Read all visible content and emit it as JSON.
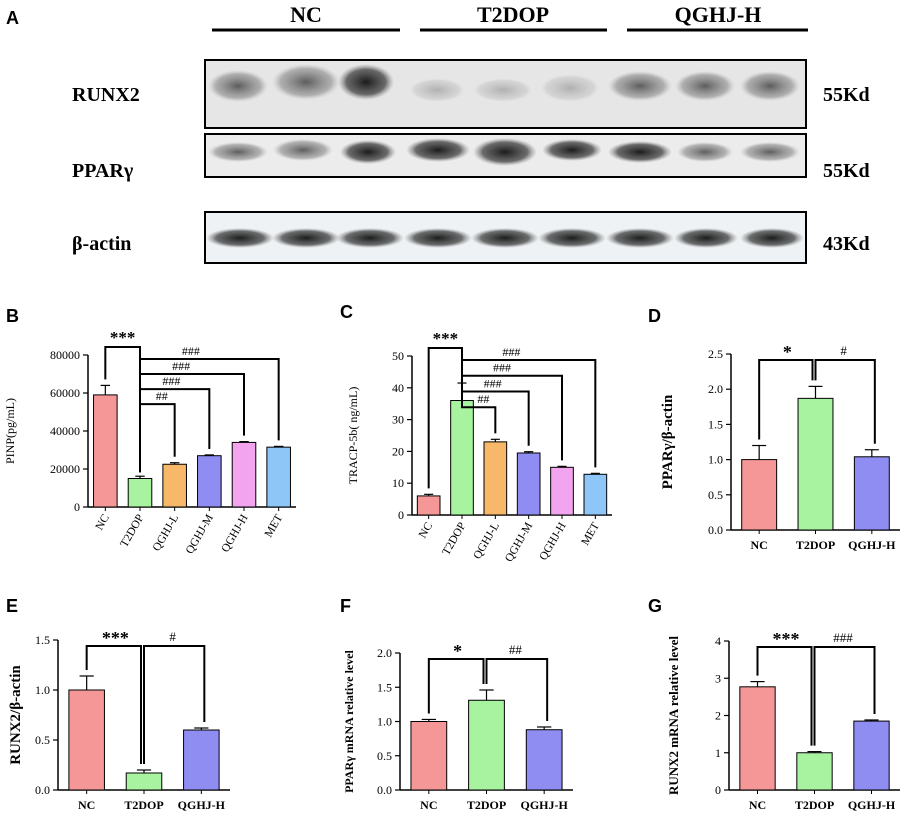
{
  "colors": {
    "nc": "#f59797",
    "t2dop": "#a7f3a0",
    "qghj_l": "#f7b86a",
    "qghj_m": "#8f8cf2",
    "qghj_h": "#f3a4ee",
    "met": "#8ec6f8",
    "qghj_h_3grp": "#8f8cf2"
  },
  "panel_a": {
    "letter": "A",
    "groups": [
      "NC",
      "T2DOP",
      "QGHJ-H"
    ],
    "blots": [
      {
        "label": "RUNX2",
        "size": "55Kd"
      },
      {
        "label": "PPARγ",
        "size": "55Kd"
      },
      {
        "label": "β-actin",
        "size": "43Kd"
      }
    ]
  },
  "chart_data": [
    {
      "id": "B",
      "letter": "B",
      "type": "bar",
      "ylabel": "PINP(pg/mL)",
      "xlabel": "",
      "ylim": [
        0,
        80000
      ],
      "yticks": [
        0,
        20000,
        40000,
        60000,
        80000
      ],
      "categories": [
        "NC",
        "T2DOP",
        "QGHJ-L",
        "QGHJ-M",
        "QGHJ-H",
        "MET"
      ],
      "values": [
        59000,
        15000,
        22500,
        27000,
        34000,
        31500
      ],
      "errors": [
        5000,
        1200,
        800,
        400,
        400,
        400
      ],
      "colorKeys": [
        "nc",
        "t2dop",
        "qghj_l",
        "qghj_m",
        "qghj_h",
        "met"
      ],
      "rotateLabels": true,
      "sig": [
        {
          "from": 0,
          "to": 1,
          "text": "***"
        },
        {
          "from": 1,
          "to": 2,
          "text": "##"
        },
        {
          "from": 1,
          "to": 3,
          "text": "###"
        },
        {
          "from": 1,
          "to": 4,
          "text": "###"
        },
        {
          "from": 1,
          "to": 5,
          "text": "###"
        }
      ]
    },
    {
      "id": "C",
      "letter": "C",
      "type": "bar",
      "ylabel": "TRACP-5b( ng/mL)",
      "xlabel": "",
      "ylim": [
        0,
        50
      ],
      "yticks": [
        0,
        10,
        20,
        30,
        40,
        50
      ],
      "categories": [
        "NC",
        "T2DOP",
        "QGHJ-L",
        "QGHJ-M",
        "QGHJ-H",
        "MET"
      ],
      "values": [
        6,
        36,
        23,
        19.5,
        15,
        12.8
      ],
      "errors": [
        0.5,
        5.5,
        0.8,
        0.4,
        0.3,
        0.3
      ],
      "colorKeys": [
        "nc",
        "t2dop",
        "qghj_l",
        "qghj_m",
        "qghj_h",
        "met"
      ],
      "rotateLabels": true,
      "sig": [
        {
          "from": 0,
          "to": 1,
          "text": "***"
        },
        {
          "from": 1,
          "to": 2,
          "text": "##"
        },
        {
          "from": 1,
          "to": 3,
          "text": "###"
        },
        {
          "from": 1,
          "to": 4,
          "text": "###"
        },
        {
          "from": 1,
          "to": 5,
          "text": "###"
        }
      ]
    },
    {
      "id": "D",
      "letter": "D",
      "type": "bar",
      "ylabel": "PPARγ/β-actin",
      "xlabel": "",
      "ylim": [
        0,
        2.5
      ],
      "yticks": [
        0.0,
        0.5,
        1.0,
        1.5,
        2.0,
        2.5
      ],
      "categories": [
        "NC",
        "T2DOP",
        "QGHJ-H"
      ],
      "values": [
        1.0,
        1.87,
        1.04
      ],
      "errors": [
        0.2,
        0.17,
        0.1
      ],
      "colorKeys": [
        "nc",
        "t2dop",
        "qghj_h_3grp"
      ],
      "rotateLabels": false,
      "sig": [
        {
          "from": 0,
          "to": 1,
          "text": "*"
        },
        {
          "from": 1,
          "to": 2,
          "text": "#"
        }
      ]
    },
    {
      "id": "E",
      "letter": "E",
      "type": "bar",
      "ylabel": "RUNX2/β-actin",
      "xlabel": "",
      "ylim": [
        0,
        1.5
      ],
      "yticks": [
        0.0,
        0.5,
        1.0,
        1.5
      ],
      "categories": [
        "NC",
        "T2DOP",
        "QGHJ-H"
      ],
      "values": [
        1.0,
        0.17,
        0.6
      ],
      "errors": [
        0.14,
        0.03,
        0.02
      ],
      "colorKeys": [
        "nc",
        "t2dop",
        "qghj_h_3grp"
      ],
      "rotateLabels": false,
      "sig": [
        {
          "from": 0,
          "to": 1,
          "text": "***"
        },
        {
          "from": 1,
          "to": 2,
          "text": "#"
        }
      ]
    },
    {
      "id": "F",
      "letter": "F",
      "type": "bar",
      "ylabel": "PPARγ mRNA relative level",
      "xlabel": "",
      "ylim": [
        0,
        2.0
      ],
      "yticks": [
        0.0,
        0.5,
        1.0,
        1.5,
        2.0
      ],
      "categories": [
        "NC",
        "T2DOP",
        "QGHJ-H"
      ],
      "values": [
        1.0,
        1.31,
        0.88
      ],
      "errors": [
        0.03,
        0.15,
        0.04
      ],
      "colorKeys": [
        "nc",
        "t2dop",
        "qghj_h_3grp"
      ],
      "rotateLabels": false,
      "sig": [
        {
          "from": 0,
          "to": 1,
          "text": "*"
        },
        {
          "from": 1,
          "to": 2,
          "text": "##"
        }
      ]
    },
    {
      "id": "G",
      "letter": "G",
      "type": "bar",
      "ylabel": "RUNX2 mRNA relative level",
      "xlabel": "",
      "ylim": [
        0,
        4
      ],
      "yticks": [
        0,
        1,
        2,
        3,
        4
      ],
      "categories": [
        "NC",
        "T2DOP",
        "QGHJ-H"
      ],
      "values": [
        2.77,
        1.0,
        1.85
      ],
      "errors": [
        0.14,
        0.03,
        0.03
      ],
      "colorKeys": [
        "nc",
        "t2dop",
        "qghj_h_3grp"
      ],
      "rotateLabels": false,
      "sig": [
        {
          "from": 0,
          "to": 1,
          "text": "***"
        },
        {
          "from": 1,
          "to": 2,
          "text": "###"
        }
      ]
    }
  ]
}
